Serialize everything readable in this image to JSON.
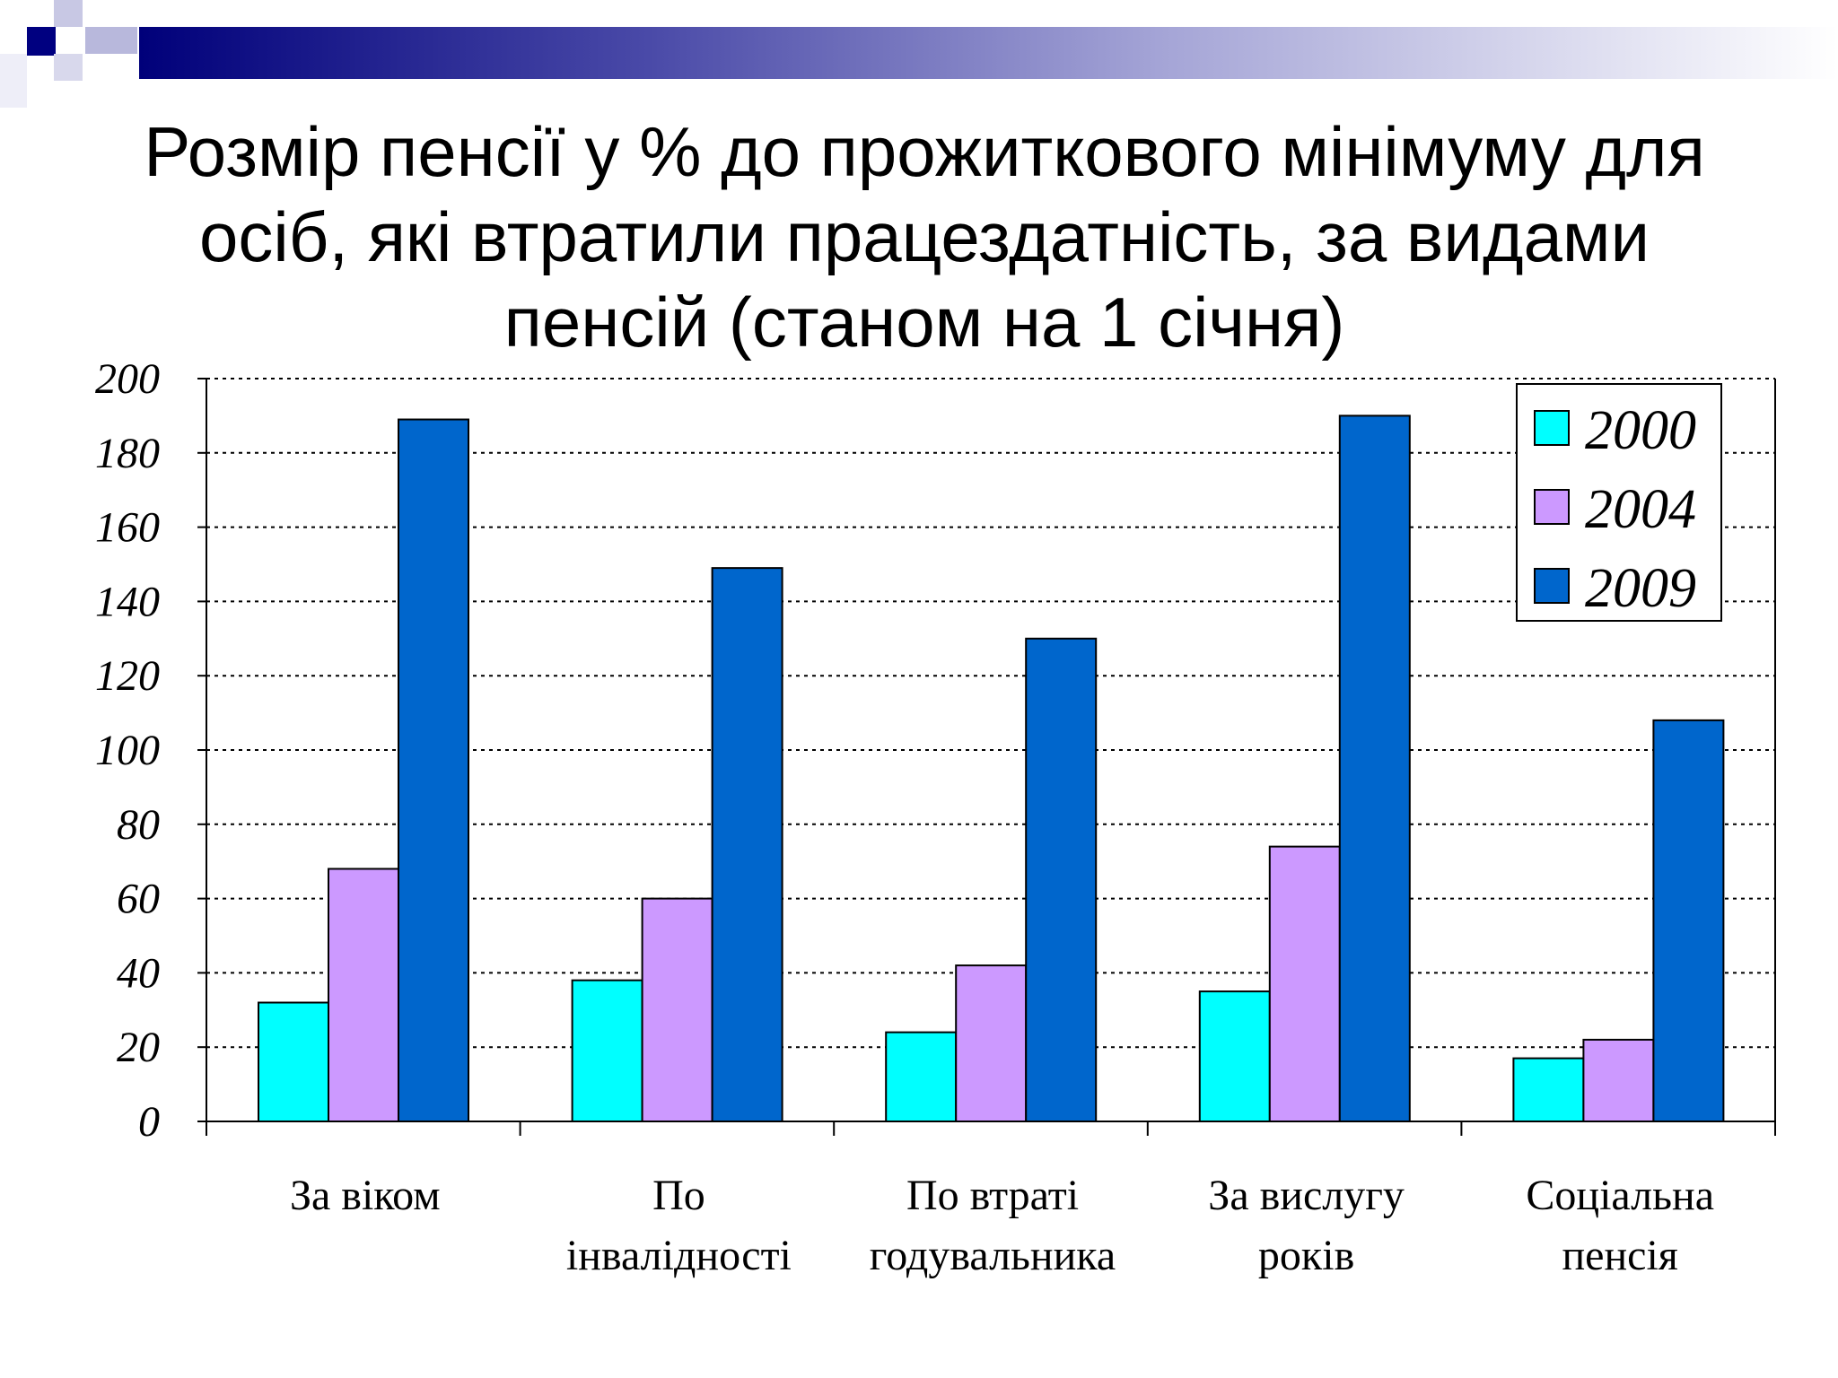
{
  "slide": {
    "title_lines": [
      "Розмір пенсії у % до прожиткового мінімуму для",
      "осіб, які втратили працездатність, за видами",
      "пенсій (станом на 1 січня)"
    ]
  },
  "colors": {
    "series_2000": "#00ffff",
    "series_2004": "#cc99ff",
    "series_2009": "#0066cc",
    "decor_dark": "#000080",
    "decor_light": "#9999cc"
  },
  "chart_data": {
    "type": "bar",
    "title": "",
    "xlabel": "",
    "ylabel": "",
    "ylim": [
      0,
      200
    ],
    "yticks": [
      0,
      20,
      40,
      60,
      80,
      100,
      120,
      140,
      160,
      180,
      200
    ],
    "grid": true,
    "legend_position": "top-right",
    "categories": [
      [
        "За віком"
      ],
      [
        "По",
        "інвалідності"
      ],
      [
        "По втраті",
        "годувальника"
      ],
      [
        "За вислугу",
        "років"
      ],
      [
        "Соціальна",
        "пенсія"
      ]
    ],
    "series": [
      {
        "name": "2000",
        "values": [
          32,
          38,
          24,
          35,
          17
        ]
      },
      {
        "name": "2004",
        "values": [
          68,
          60,
          42,
          74,
          22
        ]
      },
      {
        "name": "2009",
        "values": [
          189,
          149,
          130,
          190,
          108
        ]
      }
    ]
  }
}
